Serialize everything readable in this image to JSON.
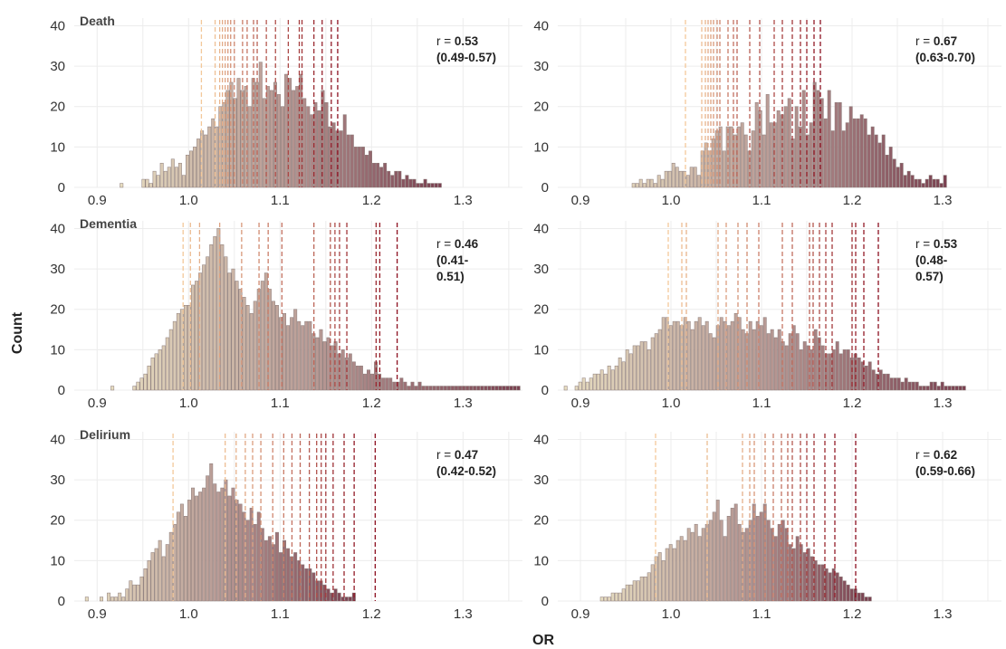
{
  "figure": {
    "ylabel": "Count",
    "xlabel": "OR"
  },
  "colors": {
    "bar_low": "#e6dcc0",
    "bar_mid": "#b89a95",
    "bar_high": "#7a4050",
    "vline_low": "#f3c89a",
    "vline_high": "#8c1020",
    "grid": "#ececec"
  },
  "chart_data": [
    {
      "type": "histogram",
      "title": "Death",
      "annotation_line1": "r = 0.53",
      "annotation_line2": "(0.49-0.57)",
      "x_ticks": [
        0.9,
        1.0,
        1.1,
        1.2,
        1.3
      ],
      "y_ticks": [
        0,
        10,
        20,
        30,
        40
      ],
      "xlim": [
        0.875,
        1.365
      ],
      "ylim": [
        0,
        41
      ],
      "grid": true,
      "bin_start": 0.925,
      "bin_width": 0.004,
      "counts": [
        1,
        0,
        0,
        0,
        0,
        0,
        2,
        2,
        1,
        4,
        3,
        6,
        4,
        5,
        7,
        5,
        6,
        3,
        8,
        9,
        10,
        12,
        14,
        13,
        15,
        17,
        15,
        20,
        21,
        24,
        26,
        22,
        27,
        24,
        25,
        20,
        27,
        26,
        31,
        22,
        25,
        24,
        26,
        23,
        20,
        28,
        27,
        24,
        25,
        28,
        22,
        20,
        18,
        21,
        19,
        24,
        21,
        15,
        16,
        14,
        14,
        18,
        13,
        13,
        10,
        10,
        10,
        8,
        9,
        6,
        6,
        5,
        6,
        4,
        3,
        4,
        4,
        2,
        3,
        2,
        2,
        1,
        1,
        2,
        1,
        1,
        1,
        1
      ],
      "vlines": [
        1.014,
        1.029,
        1.034,
        1.037,
        1.04,
        1.043,
        1.046,
        1.05,
        1.059,
        1.064,
        1.071,
        1.075,
        1.085,
        1.095,
        1.109,
        1.121,
        1.124,
        1.137,
        1.146,
        1.156,
        1.163
      ]
    },
    {
      "type": "histogram",
      "title": "",
      "annotation_line1": "r = 0.67",
      "annotation_line2": "(0.63-0.70)",
      "x_ticks": [
        0.9,
        1.0,
        1.1,
        1.2,
        1.3
      ],
      "y_ticks": [
        0,
        10,
        20,
        30,
        40
      ],
      "xlim": [
        0.875,
        1.365
      ],
      "ylim": [
        0,
        41
      ],
      "grid": true,
      "bin_start": 0.925,
      "bin_width": 0.004,
      "counts": [
        0,
        0,
        0,
        0,
        0,
        0,
        0,
        0,
        1,
        1,
        2,
        1,
        2,
        2,
        1,
        3,
        2,
        4,
        4,
        6,
        5,
        4,
        4,
        3,
        5,
        5,
        3,
        9,
        11,
        9,
        12,
        14,
        15,
        9,
        15,
        15,
        13,
        15,
        16,
        13,
        9,
        14,
        21,
        19,
        13,
        23,
        16,
        16,
        19,
        18,
        20,
        22,
        12,
        20,
        15,
        24,
        13,
        16,
        26,
        24,
        22,
        17,
        24,
        14,
        21,
        21,
        14,
        16,
        20,
        17,
        17,
        18,
        17,
        13,
        15,
        13,
        11,
        13,
        8,
        10,
        7,
        5,
        6,
        3,
        4,
        3,
        2,
        2,
        1,
        2,
        3,
        2,
        2,
        1,
        3
      ],
      "vlines": [
        1.016,
        1.034,
        1.038,
        1.041,
        1.044,
        1.047,
        1.051,
        1.054,
        1.063,
        1.069,
        1.073,
        1.087,
        1.098,
        1.114,
        1.123,
        1.134,
        1.143,
        1.15,
        1.158,
        1.165
      ]
    },
    {
      "type": "histogram",
      "title": "Dementia",
      "annotation_line1": "r = 0.46",
      "annotation_line2": "(0.41-",
      "annotation_line3": "0.51)",
      "x_ticks": [
        0.9,
        1.0,
        1.1,
        1.2,
        1.3
      ],
      "y_ticks": [
        0,
        10,
        20,
        30,
        40
      ],
      "xlim": [
        0.875,
        1.365
      ],
      "ylim": [
        0,
        41
      ],
      "grid": true,
      "bin_start": 0.915,
      "bin_width": 0.004,
      "counts": [
        1,
        0,
        0,
        0,
        0,
        0,
        1,
        2,
        3,
        4,
        6,
        8,
        9,
        10,
        11,
        13,
        15,
        17,
        19,
        20,
        21,
        21,
        26,
        27,
        29,
        31,
        33,
        36,
        38,
        40,
        36,
        33,
        29,
        30,
        27,
        25,
        23,
        21,
        19,
        22,
        25,
        27,
        29,
        25,
        22,
        21,
        18,
        19,
        16,
        18,
        20,
        17,
        16,
        17,
        17,
        14,
        13,
        15,
        12,
        13,
        11,
        12,
        9,
        10,
        8,
        9,
        7,
        6,
        6,
        4,
        5,
        4,
        7,
        4,
        3,
        3,
        3,
        2,
        2,
        3,
        2,
        1,
        2,
        1,
        2,
        1,
        1,
        1,
        1,
        1,
        1,
        1,
        1,
        1,
        1,
        1,
        1,
        1,
        1,
        1,
        1,
        1,
        1,
        1,
        1,
        1,
        1,
        1,
        1,
        1,
        1,
        1
      ],
      "vlines": [
        0.994,
        1.002,
        1.012,
        1.034,
        1.058,
        1.077,
        1.087,
        1.102,
        1.137,
        1.155,
        1.16,
        1.165,
        1.173,
        1.205,
        1.209,
        1.228
      ]
    },
    {
      "type": "histogram",
      "title": "",
      "annotation_line1": "r = 0.53",
      "annotation_line2": "(0.48-",
      "annotation_line3": "0.57)",
      "x_ticks": [
        0.9,
        1.0,
        1.1,
        1.2,
        1.3
      ],
      "y_ticks": [
        0,
        10,
        20,
        30,
        40
      ],
      "xlim": [
        0.875,
        1.365
      ],
      "ylim": [
        0,
        41
      ],
      "grid": true,
      "bin_start": 0.882,
      "bin_width": 0.004,
      "counts": [
        1,
        0,
        0,
        1,
        2,
        3,
        2,
        3,
        4,
        4,
        5,
        4,
        6,
        5,
        6,
        8,
        7,
        10,
        9,
        11,
        11,
        12,
        12,
        10,
        13,
        14,
        15,
        18,
        18,
        16,
        17,
        17,
        16,
        18,
        17,
        15,
        17,
        18,
        16,
        17,
        14,
        13,
        16,
        18,
        17,
        16,
        17,
        19,
        18,
        15,
        14,
        17,
        15,
        17,
        16,
        18,
        14,
        15,
        13,
        15,
        12,
        11,
        14,
        16,
        14,
        10,
        12,
        11,
        10,
        15,
        13,
        11,
        9,
        9,
        10,
        12,
        9,
        10,
        10,
        8,
        9,
        8,
        7,
        6,
        7,
        5,
        4,
        5,
        4,
        4,
        3,
        3,
        3,
        2,
        3,
        2,
        2,
        2,
        1,
        1,
        1,
        2,
        2,
        1,
        2,
        1,
        1,
        1,
        1,
        1,
        1
      ],
      "vlines": [
        0.997,
        1.012,
        1.017,
        1.052,
        1.061,
        1.074,
        1.084,
        1.097,
        1.123,
        1.134,
        1.153,
        1.157,
        1.164,
        1.171,
        1.178,
        1.2,
        1.204,
        1.213,
        1.229
      ]
    },
    {
      "type": "histogram",
      "title": "Delirium",
      "annotation_line1": "r = 0.47",
      "annotation_line2": "(0.42-0.52)",
      "x_ticks": [
        0.9,
        1.0,
        1.1,
        1.2,
        1.3
      ],
      "y_ticks": [
        0,
        10,
        20,
        30,
        40
      ],
      "xlim": [
        0.875,
        1.365
      ],
      "ylim": [
        0,
        41
      ],
      "grid": true,
      "bin_start": 0.887,
      "bin_width": 0.004,
      "counts": [
        1,
        0,
        0,
        0,
        1,
        0,
        2,
        1,
        1,
        2,
        1,
        3,
        5,
        4,
        4,
        6,
        8,
        10,
        12,
        13,
        15,
        11,
        14,
        17,
        19,
        22,
        24,
        21,
        25,
        28,
        26,
        27,
        28,
        31,
        34,
        29,
        27,
        28,
        30,
        26,
        28,
        25,
        24,
        22,
        20,
        23,
        19,
        22,
        18,
        15,
        16,
        14,
        17,
        12,
        15,
        13,
        11,
        12,
        10,
        9,
        8,
        8,
        7,
        5,
        5,
        4,
        3,
        2,
        3,
        2,
        1,
        1,
        1,
        2
      ],
      "vlines": [
        0.983,
        1.04,
        1.052,
        1.062,
        1.07,
        1.079,
        1.092,
        1.104,
        1.113,
        1.122,
        1.132,
        1.14,
        1.145,
        1.15,
        1.158,
        1.17,
        1.181,
        1.204
      ]
    },
    {
      "type": "histogram",
      "title": "",
      "annotation_line1": "r = 0.62",
      "annotation_line2": "(0.59-0.66)",
      "x_ticks": [
        0.9,
        1.0,
        1.1,
        1.2,
        1.3
      ],
      "y_ticks": [
        0,
        10,
        20,
        30,
        40
      ],
      "xlim": [
        0.875,
        1.365
      ],
      "ylim": [
        0,
        41
      ],
      "grid": true,
      "bin_start": 0.922,
      "bin_width": 0.004,
      "counts": [
        1,
        1,
        1,
        2,
        2,
        2,
        3,
        4,
        4,
        5,
        5,
        6,
        6,
        7,
        9,
        11,
        12,
        10,
        13,
        14,
        13,
        15,
        16,
        15,
        18,
        17,
        19,
        16,
        18,
        19,
        20,
        22,
        25,
        20,
        16,
        21,
        23,
        24,
        19,
        17,
        18,
        20,
        24,
        21,
        22,
        24,
        20,
        18,
        16,
        19,
        20,
        18,
        14,
        13,
        16,
        14,
        12,
        13,
        11,
        10,
        9,
        9,
        8,
        7,
        8,
        7,
        6,
        5,
        4,
        3,
        3,
        2,
        2,
        1,
        1
      ],
      "vlines": [
        0.983,
        1.04,
        1.079,
        1.087,
        1.092,
        1.104,
        1.113,
        1.122,
        1.129,
        1.134,
        1.143,
        1.15,
        1.158,
        1.17,
        1.181,
        1.204
      ]
    }
  ]
}
